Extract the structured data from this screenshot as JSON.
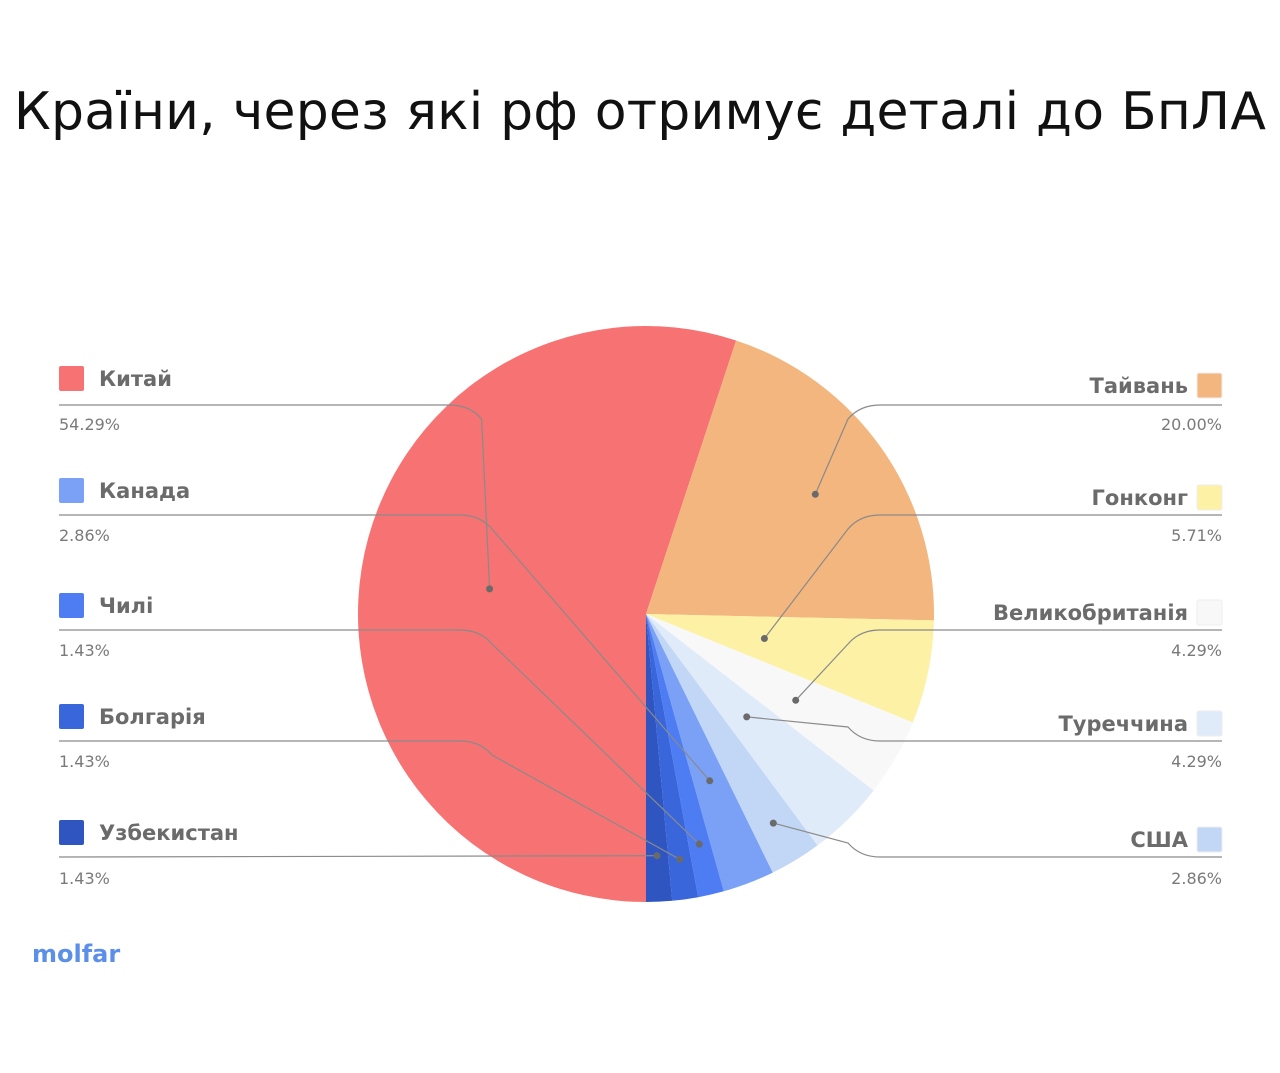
{
  "chart_data": {
    "type": "pie",
    "title": "Країни, через які рф отримує деталі до БпЛА",
    "slices": [
      {
        "name": "Китай",
        "value": 54.29,
        "label": "54.29%",
        "color": "#f77272",
        "side": "left",
        "swatch": "#f77272"
      },
      {
        "name": "Тайвань",
        "value": 20.0,
        "label": "20.00%",
        "color": "#f3b67e",
        "side": "right",
        "swatch": "#f3b67e"
      },
      {
        "name": "Гонконг",
        "value": 5.71,
        "label": "5.71%",
        "color": "#fdf1a6",
        "side": "right",
        "swatch": "#fdf1a6"
      },
      {
        "name": "Великобританія",
        "value": 4.29,
        "label": "4.29%",
        "color": "#f8f8f8",
        "side": "right",
        "swatch": "#f8f8f8"
      },
      {
        "name": "Туреччина",
        "value": 4.29,
        "label": "4.29%",
        "color": "#e0ebfa",
        "side": "right",
        "swatch": "#e0ebfa"
      },
      {
        "name": "США",
        "value": 2.86,
        "label": "2.86%",
        "color": "#c1d7f5",
        "side": "right",
        "swatch": "#c1d7f5"
      },
      {
        "name": "Канада",
        "value": 2.86,
        "label": "2.86%",
        "color": "#7aa1f5",
        "side": "left",
        "swatch": "#7aa1f5"
      },
      {
        "name": "Чилі",
        "value": 1.43,
        "label": "1.43%",
        "color": "#4e7cf2",
        "side": "left",
        "swatch": "#4e7cf2"
      },
      {
        "name": "Болгарія",
        "value": 1.43,
        "label": "1.43%",
        "color": "#3a66dc",
        "side": "left",
        "swatch": "#3a66dc"
      },
      {
        "name": "Узбекистан",
        "value": 1.43,
        "label": "1.43%",
        "color": "#2f55c0",
        "side": "left",
        "swatch": "#2f55c0"
      }
    ]
  },
  "logo": {
    "text": "molfar",
    "color": "#5b8fe8"
  }
}
